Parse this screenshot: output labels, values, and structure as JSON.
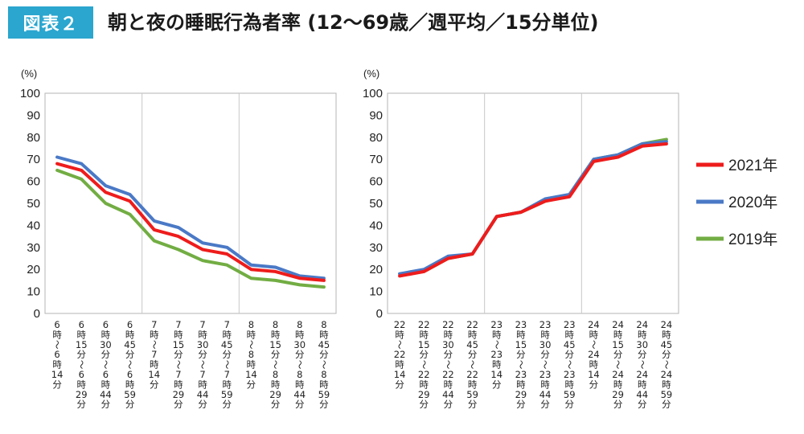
{
  "header": {
    "badge": "図表２",
    "title": "朝と夜の睡眠行為者率 (12〜69歳／週平均／15分単位)"
  },
  "colors": {
    "2021年": "#ee1c1c",
    "2020年": "#4a79c6",
    "2019年": "#72ad43"
  },
  "chart_data": [
    {
      "type": "line",
      "ylabel": "(%)",
      "ylim": [
        0,
        100
      ],
      "yticks": [
        "0",
        "10",
        "20",
        "30",
        "40",
        "50",
        "60",
        "70",
        "80",
        "90",
        "100"
      ],
      "categories": [
        "6時〜6時14分",
        "6時15分〜6時29分",
        "6時30分〜6時44分",
        "6時45分〜6時59分",
        "7時〜7時14分",
        "7時15分〜7時29分",
        "7時30分〜7時44分",
        "7時45分〜7時59分",
        "8時〜8時14分",
        "8時15分〜8時29分",
        "8時30分〜8時44分",
        "8時45分〜8時59分"
      ],
      "tick_labels": [
        [
          "6",
          "時",
          "〜",
          "6",
          "時",
          "14",
          "分"
        ],
        [
          "6",
          "時",
          "15",
          "分",
          "〜",
          "6",
          "時",
          "29",
          "分"
        ],
        [
          "6",
          "時",
          "30",
          "分",
          "〜",
          "6",
          "時",
          "44",
          "分"
        ],
        [
          "6",
          "時",
          "45",
          "分",
          "〜",
          "6",
          "時",
          "59",
          "分"
        ],
        [
          "7",
          "時",
          "〜",
          "7",
          "時",
          "14",
          "分"
        ],
        [
          "7",
          "時",
          "15",
          "分",
          "〜",
          "7",
          "時",
          "29",
          "分"
        ],
        [
          "7",
          "時",
          "30",
          "分",
          "〜",
          "7",
          "時",
          "44",
          "分"
        ],
        [
          "7",
          "時",
          "45",
          "分",
          "〜",
          "7",
          "時",
          "59",
          "分"
        ],
        [
          "8",
          "時",
          "〜",
          "8",
          "時",
          "14",
          "分"
        ],
        [
          "8",
          "時",
          "15",
          "分",
          "〜",
          "8",
          "時",
          "29",
          "分"
        ],
        [
          "8",
          "時",
          "30",
          "分",
          "〜",
          "8",
          "時",
          "44",
          "分"
        ],
        [
          "8",
          "時",
          "45",
          "分",
          "〜",
          "8",
          "時",
          "59",
          "分"
        ]
      ],
      "series": [
        {
          "name": "2021年",
          "values": [
            68,
            65,
            55,
            51,
            38,
            35,
            29,
            27,
            20,
            19,
            16,
            15
          ]
        },
        {
          "name": "2020年",
          "values": [
            71,
            68,
            58,
            54,
            42,
            39,
            32,
            30,
            22,
            21,
            17,
            16
          ]
        },
        {
          "name": "2019年",
          "values": [
            65,
            61,
            50,
            45,
            33,
            29,
            24,
            22,
            16,
            15,
            13,
            12
          ]
        }
      ]
    },
    {
      "type": "line",
      "ylabel": "(%)",
      "ylim": [
        0,
        100
      ],
      "yticks": [
        "0",
        "10",
        "20",
        "30",
        "40",
        "50",
        "60",
        "70",
        "80",
        "90",
        "100"
      ],
      "categories": [
        "22時〜22時14分",
        "22時15分〜22時29分",
        "22時30分〜22時44分",
        "22時45分〜22時59分",
        "23時〜23時14分",
        "23時15分〜23時29分",
        "23時30分〜23時44分",
        "23時45分〜23時59分",
        "24時〜24時14分",
        "24時15分〜24時29分",
        "24時30分〜24時44分",
        "24時45分〜24時59分"
      ],
      "tick_labels": [
        [
          "22",
          "時",
          "〜",
          "22",
          "時",
          "14",
          "分"
        ],
        [
          "22",
          "時",
          "15",
          "分",
          "〜",
          "22",
          "時",
          "29",
          "分"
        ],
        [
          "22",
          "時",
          "30",
          "分",
          "〜",
          "22",
          "時",
          "44",
          "分"
        ],
        [
          "22",
          "時",
          "45",
          "分",
          "〜",
          "22",
          "時",
          "59",
          "分"
        ],
        [
          "23",
          "時",
          "〜",
          "23",
          "時",
          "14",
          "分"
        ],
        [
          "23",
          "時",
          "15",
          "分",
          "〜",
          "23",
          "時",
          "29",
          "分"
        ],
        [
          "23",
          "時",
          "30",
          "分",
          "〜",
          "23",
          "時",
          "44",
          "分"
        ],
        [
          "23",
          "時",
          "45",
          "分",
          "〜",
          "23",
          "時",
          "59",
          "分"
        ],
        [
          "24",
          "時",
          "〜",
          "24",
          "時",
          "14",
          "分"
        ],
        [
          "24",
          "時",
          "15",
          "分",
          "〜",
          "24",
          "時",
          "29",
          "分"
        ],
        [
          "24",
          "時",
          "30",
          "分",
          "〜",
          "24",
          "時",
          "44",
          "分"
        ],
        [
          "24",
          "時",
          "45",
          "分",
          "〜",
          "24",
          "時",
          "59",
          "分"
        ]
      ],
      "series": [
        {
          "name": "2021年",
          "values": [
            17,
            19,
            25,
            27,
            44,
            46,
            51,
            53,
            69,
            71,
            76,
            77
          ]
        },
        {
          "name": "2020年",
          "values": [
            18,
            20,
            26,
            27,
            44,
            46,
            52,
            54,
            70,
            72,
            77,
            78
          ]
        },
        {
          "name": "2019年",
          "values": [
            18,
            19,
            25,
            27,
            44,
            46,
            51,
            54,
            70,
            72,
            77,
            79
          ]
        }
      ]
    }
  ],
  "legend": [
    {
      "label": "2021年",
      "series": "2021年"
    },
    {
      "label": "2020年",
      "series": "2020年"
    },
    {
      "label": "2019年",
      "series": "2019年"
    }
  ]
}
